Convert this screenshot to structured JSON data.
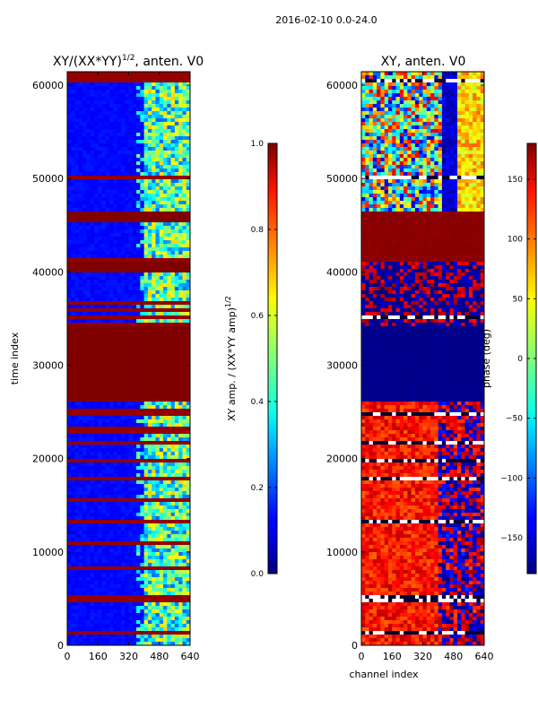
{
  "suptitle": "2016-02-10 0.0-24.0",
  "shared": {
    "xlabel": "channel index",
    "ylabel": "time index",
    "xlim": [
      0,
      640
    ],
    "ylim": [
      0,
      61440
    ],
    "x_ticks": [
      0,
      160,
      320,
      480,
      640
    ],
    "y_ticks": [
      0,
      10000,
      20000,
      30000,
      40000,
      50000,
      60000
    ],
    "colormap": "jet"
  },
  "chart_data": [
    {
      "type": "heatmap",
      "title_prefix": "XY/(XX*YY)",
      "title_exponent": "1/2",
      "title_suffix": ", anten. V0",
      "ylabel": "time index",
      "xlabel": "",
      "xlim": [
        0,
        640
      ],
      "ylim": [
        0,
        61440
      ],
      "x_ticks": [
        0,
        160,
        320,
        480,
        640
      ],
      "y_ticks": [
        0,
        10000,
        20000,
        30000,
        40000,
        50000,
        60000
      ],
      "colorbar": {
        "label_prefix": "XY amp. / (XX*YY amp)",
        "label_exponent": "1/2",
        "range": [
          0.0,
          1.0
        ],
        "ticks": [
          "0.0",
          "0.2",
          "0.4",
          "0.6",
          "0.8",
          "1.0"
        ]
      },
      "background_value": 0.13,
      "saturated_time_bands": [
        [
          26200,
          34000
        ],
        [
          40100,
          41000
        ],
        [
          45500,
          46300
        ]
      ],
      "saturated_lines": [
        1300,
        4900,
        5300,
        7300,
        8400,
        10400,
        11000,
        13200,
        15700,
        17800,
        19700,
        21800,
        22700,
        23200,
        24700,
        25300,
        34500,
        35100,
        36000,
        36700,
        37600,
        38400,
        39200,
        41200,
        50200,
        50700,
        55300,
        60500,
        61000,
        61300
      ],
      "active_channel_range": [
        400,
        640
      ],
      "active_value": 0.45
    },
    {
      "type": "heatmap",
      "title": "XY, anten. V0",
      "ylabel": "",
      "xlabel": "channel index",
      "xlim": [
        0,
        640
      ],
      "ylim": [
        0,
        61440
      ],
      "x_ticks": [
        0,
        160,
        320,
        480,
        640
      ],
      "y_ticks": [
        0,
        10000,
        20000,
        30000,
        40000,
        50000,
        60000
      ],
      "colorbar": {
        "label": "phase (deg)",
        "range": [
          -180,
          180
        ],
        "ticks": [
          "−150",
          "−100",
          "−50",
          "0",
          "50",
          "100",
          "150"
        ]
      },
      "zones": [
        {
          "time_range": [
            0,
            26200
          ],
          "phase_center": 120
        },
        {
          "time_range": [
            26200,
            34000
          ],
          "phase_center": -180
        },
        {
          "time_range": [
            34000,
            41000
          ],
          "phase_center": -120
        },
        {
          "time_range": [
            41000,
            46300
          ],
          "phase_center": 180
        },
        {
          "time_range": [
            46300,
            61440
          ],
          "phase_center": 60
        }
      ],
      "divider_lines": [
        1300,
        4900,
        5300,
        8400,
        10400,
        13200,
        15700,
        17800,
        19700,
        21800,
        22700,
        24700,
        25300,
        35100,
        37600,
        39200,
        50200,
        55300,
        60500
      ]
    }
  ]
}
